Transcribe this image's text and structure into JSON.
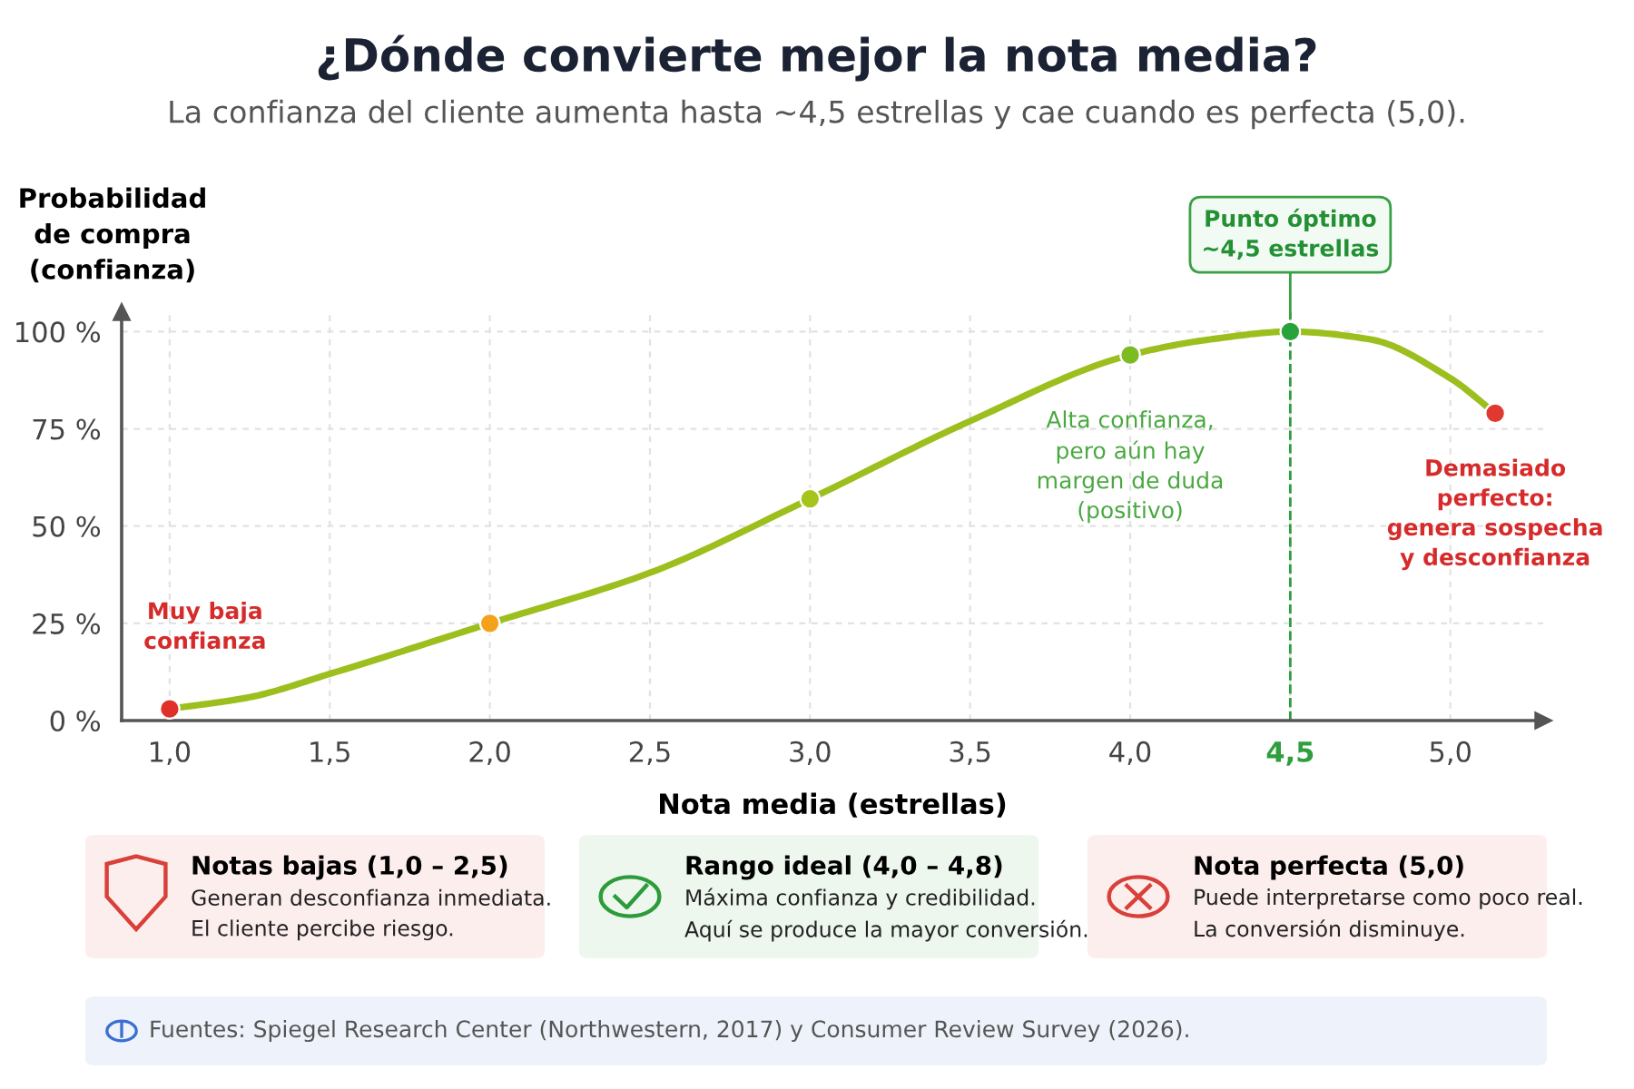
{
  "chart_data": {
    "type": "line",
    "title": "¿Dónde convierte mejor la nota media?",
    "subtitle": "La confianza del cliente aumenta hasta ~4,5 estrellas y cae cuando es perfecta (5,0).",
    "xlabel": "Nota media (estrellas)",
    "ylabel": "Probabilidad\nde compra\n(confianza)",
    "series": [
      {
        "color": "#9cbf1e",
        "x": [
          1.0,
          1.25,
          1.5,
          2.0,
          2.5,
          3.0,
          3.5,
          4.0,
          4.25,
          4.5,
          4.75,
          5.0,
          5.14
        ],
        "values": [
          3,
          6,
          12,
          25,
          38,
          57,
          77,
          94,
          98,
          100,
          98,
          88,
          79
        ],
        "line_style": "solid",
        "marker": "none"
      },
      {
        "type": "scatter",
        "colors": [
          "#e0302a",
          "#f5a21b",
          "#a6c51c",
          "#7dbb22",
          "#28a33c",
          "#e0392f"
        ],
        "x": [
          1.0,
          2.0,
          3.0,
          4.0,
          4.5,
          5.14
        ],
        "values": [
          3,
          25,
          57,
          94,
          100,
          79
        ],
        "marker": "circle"
      }
    ],
    "xlim": [
      0.85,
      5.29
    ],
    "ylim": [
      0,
      105
    ],
    "xticks": [
      {
        "value": 1.0,
        "label": "1,0"
      },
      {
        "value": 1.5,
        "label": "1,5"
      },
      {
        "value": 2.0,
        "label": "2,0"
      },
      {
        "value": 2.5,
        "label": "2,5"
      },
      {
        "value": 3.0,
        "label": "3,0"
      },
      {
        "value": 3.5,
        "label": "3,5"
      },
      {
        "value": 4.0,
        "label": "4,0"
      },
      {
        "value": 4.5,
        "label": "4,5"
      },
      {
        "value": 5.0,
        "label": "5,0"
      }
    ],
    "yticks": [
      {
        "value": 0,
        "label": "0 %"
      },
      {
        "value": 25,
        "label": "25 %"
      },
      {
        "value": 50,
        "label": "50 %"
      },
      {
        "value": 75,
        "label": "75 %"
      },
      {
        "value": 100,
        "label": "100 %"
      }
    ],
    "grid": true,
    "ref_lines": [
      {
        "axis": "x",
        "value": 4.5,
        "color": "#2e9e3e",
        "line_style": "dashed"
      }
    ],
    "annotations": [
      {
        "text": "Muy baja\nconfianza",
        "x": 1.0,
        "y": 3
      },
      {
        "text": "Alta confianza,\npero aún hay\nmargen de duda\n(positivo)",
        "x": 4.0,
        "y": 94
      },
      {
        "text": "Punto óptimo\n~4,5 estrellas",
        "x": 4.5,
        "y": 100
      },
      {
        "text": "Demasiado\nperfecto:\ngenera sospecha\ny desconfianza",
        "x": 5.14,
        "y": 79
      },
      "Notas bajas (1,0 – 2,5)",
      "Generan desconfianza inmediata.\nEl cliente percibe riesgo.",
      "Rango ideal (4,0 – 4,8)",
      "Máxima confianza y credibilidad.\nAquí se produce la mayor conversión.",
      "Nota perfecta (5,0)",
      "Puede interpretarse como poco real.\nLa conversión disminuye.",
      "Fuentes: Spiegel Research Center (Northwestern, 2017) y Consumer Review Survey (2026)."
    ]
  }
}
